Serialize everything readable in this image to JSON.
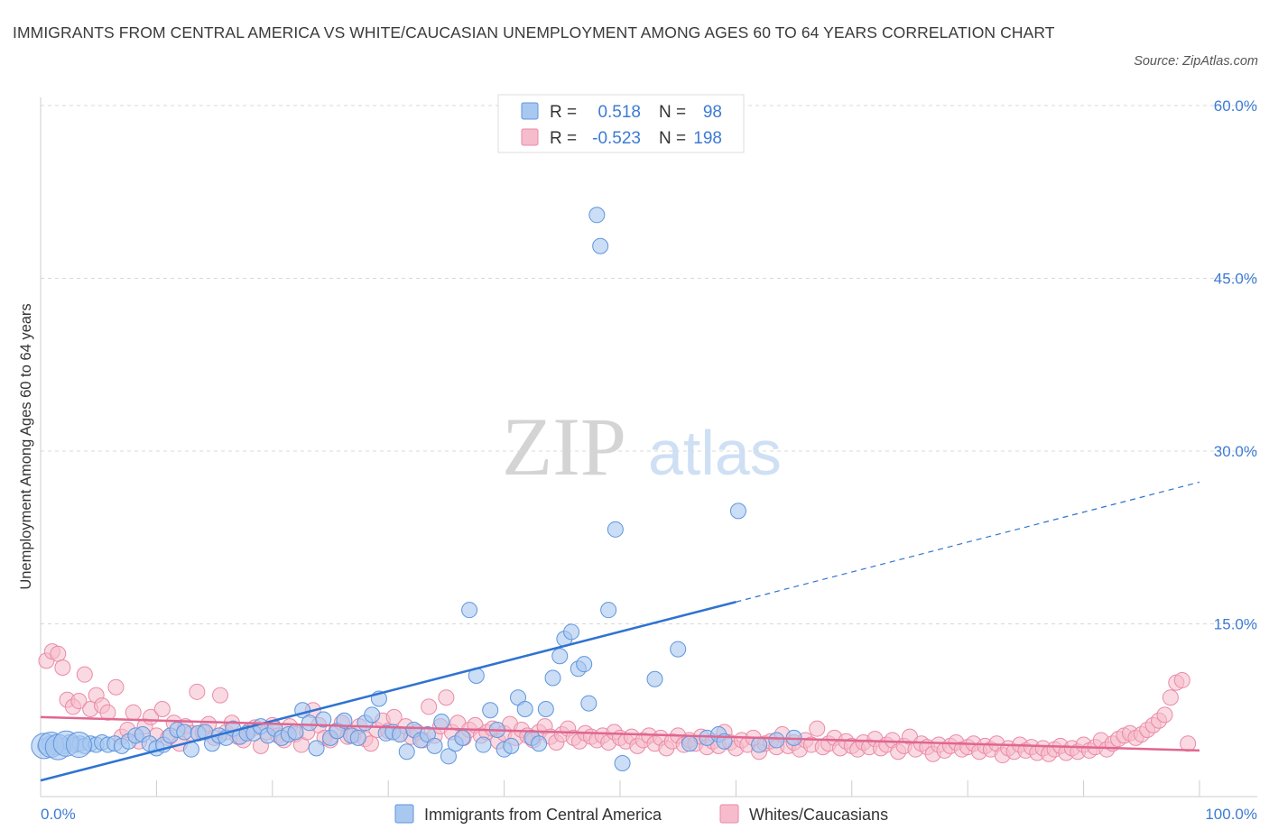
{
  "title": "IMMIGRANTS FROM CENTRAL AMERICA VS WHITE/CAUCASIAN UNEMPLOYMENT AMONG AGES 60 TO 64 YEARS CORRELATION CHART",
  "source": "Source: ZipAtlas.com",
  "watermark": {
    "zip": "ZIP",
    "atlas": "atlas"
  },
  "colors": {
    "blue_fill": "#a9c8f0",
    "blue_stroke": "#5f95dd",
    "blue_line": "#2f73d1",
    "pink_fill": "#f6bccb",
    "pink_stroke": "#ea8aa6",
    "pink_line": "#e06690",
    "axis_text": "#3d7bd4",
    "grid": "#d8d8d8"
  },
  "legend": {
    "r_label": "R =",
    "n_label": "N =",
    "rows": [
      {
        "r": "0.518",
        "n": "98"
      },
      {
        "r": "-0.523",
        "n": "198"
      }
    ]
  },
  "bottom_legend": [
    "Immigrants from Central America",
    "Whites/Caucasians"
  ],
  "chart_data": {
    "type": "scatter",
    "xlabel": "",
    "ylabel": "Unemployment Among Ages 60 to 64 years",
    "xlim": [
      0,
      100
    ],
    "ylim": [
      0,
      60
    ],
    "x_tick_labels": [
      "0.0%",
      "100.0%"
    ],
    "y_ticks": [
      15,
      30,
      45,
      60
    ],
    "y_tick_labels": [
      "15.0%",
      "30.0%",
      "45.0%",
      "60.0%"
    ],
    "series": [
      {
        "name": "Immigrants from Central America",
        "r": 0.518,
        "n": 98,
        "trend": {
          "x0": 0,
          "y0": 1.4,
          "x1": 60,
          "y1": 16.9,
          "dashed_to_x": 100,
          "dashed_to_y": 27.3
        },
        "points": [
          [
            0.4,
            4.4
          ],
          [
            0.8,
            4.6
          ],
          [
            1.2,
            4.3
          ],
          [
            1.6,
            4.5
          ],
          [
            2.0,
            4.4
          ],
          [
            2.5,
            4.7
          ],
          [
            3.0,
            4.5
          ],
          [
            3.4,
            4.6
          ],
          [
            3.8,
            4.4
          ],
          [
            4.3,
            4.6
          ],
          [
            4.8,
            4.5
          ],
          [
            5.3,
            4.7
          ],
          [
            5.8,
            4.5
          ],
          [
            6.4,
            4.6
          ],
          [
            7.0,
            4.4
          ],
          [
            7.6,
            4.8
          ],
          [
            8.2,
            5.3
          ],
          [
            8.8,
            5.4
          ],
          [
            9.4,
            4.6
          ],
          [
            10.0,
            4.2
          ],
          [
            10.6,
            4.5
          ],
          [
            11.2,
            5.3
          ],
          [
            11.8,
            5.8
          ],
          [
            12.4,
            5.6
          ],
          [
            13.0,
            4.1
          ],
          [
            13.6,
            5.5
          ],
          [
            14.2,
            5.6
          ],
          [
            14.8,
            4.6
          ],
          [
            15.4,
            5.3
          ],
          [
            16.0,
            5.1
          ],
          [
            16.6,
            5.9
          ],
          [
            17.2,
            5.2
          ],
          [
            17.8,
            5.5
          ],
          [
            18.4,
            5.5
          ],
          [
            19.0,
            6.1
          ],
          [
            19.6,
            5.3
          ],
          [
            20.2,
            5.9
          ],
          [
            20.8,
            5.1
          ],
          [
            21.4,
            5.4
          ],
          [
            22.0,
            5.6
          ],
          [
            22.6,
            7.5
          ],
          [
            23.2,
            6.4
          ],
          [
            23.8,
            4.2
          ],
          [
            24.4,
            6.7
          ],
          [
            25.0,
            5.1
          ],
          [
            25.6,
            5.7
          ],
          [
            26.2,
            6.6
          ],
          [
            26.8,
            5.3
          ],
          [
            27.4,
            5.1
          ],
          [
            28.0,
            6.4
          ],
          [
            28.6,
            7.1
          ],
          [
            29.2,
            8.5
          ],
          [
            29.8,
            5.5
          ],
          [
            30.4,
            5.6
          ],
          [
            31.0,
            5.4
          ],
          [
            31.6,
            3.9
          ],
          [
            32.2,
            5.8
          ],
          [
            32.8,
            4.9
          ],
          [
            33.4,
            5.4
          ],
          [
            34.0,
            4.4
          ],
          [
            34.6,
            6.5
          ],
          [
            35.2,
            3.5
          ],
          [
            35.8,
            4.6
          ],
          [
            36.4,
            5.1
          ],
          [
            37.0,
            16.2
          ],
          [
            37.6,
            10.5
          ],
          [
            38.2,
            4.5
          ],
          [
            38.8,
            7.5
          ],
          [
            39.4,
            5.8
          ],
          [
            40.0,
            4.1
          ],
          [
            40.6,
            4.4
          ],
          [
            41.2,
            8.6
          ],
          [
            41.8,
            7.6
          ],
          [
            42.4,
            5.1
          ],
          [
            43.0,
            4.6
          ],
          [
            43.6,
            7.6
          ],
          [
            44.2,
            10.3
          ],
          [
            44.8,
            12.2
          ],
          [
            45.2,
            13.7
          ],
          [
            45.8,
            14.3
          ],
          [
            46.4,
            11.1
          ],
          [
            46.9,
            11.5
          ],
          [
            47.3,
            8.1
          ],
          [
            48.0,
            50.5
          ],
          [
            48.3,
            47.8
          ],
          [
            49.0,
            16.2
          ],
          [
            49.6,
            23.2
          ],
          [
            50.2,
            2.9
          ],
          [
            53.0,
            10.2
          ],
          [
            55.0,
            12.8
          ],
          [
            56.0,
            4.6
          ],
          [
            57.5,
            5.1
          ],
          [
            58.5,
            5.4
          ],
          [
            60.2,
            24.8
          ],
          [
            62.0,
            4.5
          ],
          [
            63.5,
            4.9
          ],
          [
            65.0,
            5.1
          ],
          [
            59.0,
            4.8
          ]
        ],
        "large_points": [
          [
            0.3,
            4.4
          ],
          [
            0.9,
            4.5
          ],
          [
            1.5,
            4.3
          ],
          [
            2.2,
            4.6
          ],
          [
            3.3,
            4.5
          ]
        ]
      },
      {
        "name": "Whites/Caucasians",
        "r": -0.523,
        "n": 198,
        "trend": {
          "x0": 0,
          "y0": 6.9,
          "x1": 100,
          "y1": 4.0
        },
        "points": [
          [
            0.5,
            11.8
          ],
          [
            1.0,
            12.6
          ],
          [
            1.5,
            12.4
          ],
          [
            1.9,
            11.2
          ],
          [
            2.3,
            8.4
          ],
          [
            2.8,
            7.8
          ],
          [
            3.3,
            8.3
          ],
          [
            3.8,
            10.6
          ],
          [
            4.3,
            7.6
          ],
          [
            4.8,
            8.8
          ],
          [
            5.3,
            7.9
          ],
          [
            5.8,
            7.3
          ],
          [
            6.5,
            9.5
          ],
          [
            7.0,
            5.2
          ],
          [
            7.5,
            5.8
          ],
          [
            8.0,
            7.3
          ],
          [
            8.5,
            4.8
          ],
          [
            9.0,
            6.1
          ],
          [
            9.5,
            6.9
          ],
          [
            10.0,
            5.3
          ],
          [
            10.5,
            7.6
          ],
          [
            11.0,
            5.1
          ],
          [
            11.5,
            6.4
          ],
          [
            12.0,
            4.6
          ],
          [
            12.5,
            6.1
          ],
          [
            13.0,
            5.5
          ],
          [
            13.5,
            9.1
          ],
          [
            14.0,
            5.6
          ],
          [
            14.5,
            6.3
          ],
          [
            15.0,
            5.1
          ],
          [
            15.5,
            8.8
          ],
          [
            16.0,
            5.6
          ],
          [
            16.5,
            6.4
          ],
          [
            17.0,
            5.2
          ],
          [
            17.5,
            4.9
          ],
          [
            18.0,
            5.7
          ],
          [
            18.5,
            6.0
          ],
          [
            19.0,
            4.4
          ],
          [
            19.5,
            5.6
          ],
          [
            20.0,
            6.2
          ],
          [
            20.5,
            5.3
          ],
          [
            21.0,
            4.9
          ],
          [
            21.5,
            6.1
          ],
          [
            22.0,
            5.4
          ],
          [
            22.5,
            4.5
          ],
          [
            23.0,
            5.6
          ],
          [
            23.5,
            7.5
          ],
          [
            24.0,
            6.2
          ],
          [
            24.5,
            5.1
          ],
          [
            25.0,
            4.9
          ],
          [
            25.5,
            5.7
          ],
          [
            26.0,
            6.4
          ],
          [
            26.5,
            5.2
          ],
          [
            27.0,
            5.3
          ],
          [
            27.5,
            6.1
          ],
          [
            28.0,
            5.0
          ],
          [
            28.5,
            4.6
          ],
          [
            29.0,
            5.8
          ],
          [
            29.5,
            6.6
          ],
          [
            30.0,
            5.7
          ],
          [
            30.5,
            6.9
          ],
          [
            31.0,
            5.4
          ],
          [
            31.5,
            6.1
          ],
          [
            32.0,
            5.2
          ],
          [
            32.5,
            5.6
          ],
          [
            33.0,
            4.9
          ],
          [
            33.5,
            7.8
          ],
          [
            34.0,
            5.3
          ],
          [
            34.5,
            6.1
          ],
          [
            35.0,
            8.6
          ],
          [
            35.5,
            5.6
          ],
          [
            36.0,
            6.4
          ],
          [
            36.5,
            5.1
          ],
          [
            37.0,
            5.8
          ],
          [
            37.5,
            6.2
          ],
          [
            38.0,
            5.3
          ],
          [
            38.5,
            5.6
          ],
          [
            39.0,
            5.9
          ],
          [
            39.5,
            4.8
          ],
          [
            40.0,
            5.5
          ],
          [
            40.5,
            6.3
          ],
          [
            41.0,
            5.1
          ],
          [
            41.5,
            5.8
          ],
          [
            42.0,
            5.3
          ],
          [
            42.5,
            4.9
          ],
          [
            43.0,
            5.6
          ],
          [
            43.5,
            6.1
          ],
          [
            44.0,
            5.2
          ],
          [
            44.5,
            4.7
          ],
          [
            45.0,
            5.4
          ],
          [
            45.5,
            5.9
          ],
          [
            46.0,
            5.1
          ],
          [
            46.5,
            4.8
          ],
          [
            47.0,
            5.5
          ],
          [
            47.5,
            5.2
          ],
          [
            48.0,
            4.9
          ],
          [
            48.5,
            5.3
          ],
          [
            49.0,
            4.7
          ],
          [
            49.5,
            5.6
          ],
          [
            50.0,
            5.1
          ],
          [
            50.5,
            4.8
          ],
          [
            51.0,
            5.2
          ],
          [
            51.5,
            4.4
          ],
          [
            52.0,
            4.9
          ],
          [
            52.5,
            5.3
          ],
          [
            53.0,
            4.6
          ],
          [
            53.5,
            5.1
          ],
          [
            54.0,
            4.2
          ],
          [
            54.5,
            4.8
          ],
          [
            55.0,
            5.3
          ],
          [
            55.5,
            4.5
          ],
          [
            56.0,
            4.9
          ],
          [
            56.5,
            4.6
          ],
          [
            57.0,
            5.2
          ],
          [
            57.5,
            4.3
          ],
          [
            58.0,
            4.8
          ],
          [
            58.5,
            4.4
          ],
          [
            59.0,
            5.6
          ],
          [
            59.5,
            4.7
          ],
          [
            60.0,
            4.2
          ],
          [
            60.5,
            4.9
          ],
          [
            61.0,
            4.5
          ],
          [
            61.5,
            5.1
          ],
          [
            62.0,
            3.9
          ],
          [
            62.5,
            4.6
          ],
          [
            63.0,
            4.8
          ],
          [
            63.5,
            4.3
          ],
          [
            64.0,
            5.4
          ],
          [
            64.5,
            4.4
          ],
          [
            65.0,
            4.7
          ],
          [
            65.5,
            4.1
          ],
          [
            66.0,
            4.9
          ],
          [
            66.5,
            4.5
          ],
          [
            67.0,
            5.9
          ],
          [
            67.5,
            4.3
          ],
          [
            68.0,
            4.6
          ],
          [
            68.5,
            5.1
          ],
          [
            69.0,
            4.2
          ],
          [
            69.5,
            4.8
          ],
          [
            70.0,
            4.4
          ],
          [
            70.5,
            4.1
          ],
          [
            71.0,
            4.7
          ],
          [
            71.5,
            4.3
          ],
          [
            72.0,
            5.0
          ],
          [
            72.5,
            4.2
          ],
          [
            73.0,
            4.5
          ],
          [
            73.5,
            4.9
          ],
          [
            74.0,
            3.9
          ],
          [
            74.5,
            4.4
          ],
          [
            75.0,
            5.2
          ],
          [
            75.5,
            4.1
          ],
          [
            76.0,
            4.6
          ],
          [
            76.5,
            4.3
          ],
          [
            77.0,
            3.7
          ],
          [
            77.5,
            4.5
          ],
          [
            78.0,
            4.0
          ],
          [
            78.5,
            4.4
          ],
          [
            79.0,
            4.7
          ],
          [
            79.5,
            4.1
          ],
          [
            80.0,
            4.3
          ],
          [
            80.5,
            4.6
          ],
          [
            81.0,
            3.9
          ],
          [
            81.5,
            4.4
          ],
          [
            82.0,
            4.1
          ],
          [
            82.5,
            4.6
          ],
          [
            83.0,
            3.6
          ],
          [
            83.5,
            4.2
          ],
          [
            84.0,
            3.9
          ],
          [
            84.5,
            4.5
          ],
          [
            85.0,
            4.0
          ],
          [
            85.5,
            4.3
          ],
          [
            86.0,
            3.8
          ],
          [
            86.5,
            4.2
          ],
          [
            87.0,
            3.7
          ],
          [
            87.5,
            4.1
          ],
          [
            88.0,
            4.4
          ],
          [
            88.5,
            3.8
          ],
          [
            89.0,
            4.2
          ],
          [
            89.5,
            3.9
          ],
          [
            90.0,
            4.5
          ],
          [
            90.5,
            4.0
          ],
          [
            91.0,
            4.3
          ],
          [
            91.5,
            4.9
          ],
          [
            92.0,
            4.1
          ],
          [
            92.5,
            4.6
          ],
          [
            93.0,
            5.0
          ],
          [
            93.5,
            5.3
          ],
          [
            94.0,
            5.5
          ],
          [
            94.5,
            5.1
          ],
          [
            95.0,
            5.4
          ],
          [
            95.5,
            5.8
          ],
          [
            96.0,
            6.2
          ],
          [
            96.5,
            6.6
          ],
          [
            97.0,
            7.1
          ],
          [
            97.5,
            8.6
          ],
          [
            98.0,
            9.9
          ],
          [
            98.5,
            10.1
          ],
          [
            99.0,
            4.6
          ]
        ]
      }
    ]
  }
}
